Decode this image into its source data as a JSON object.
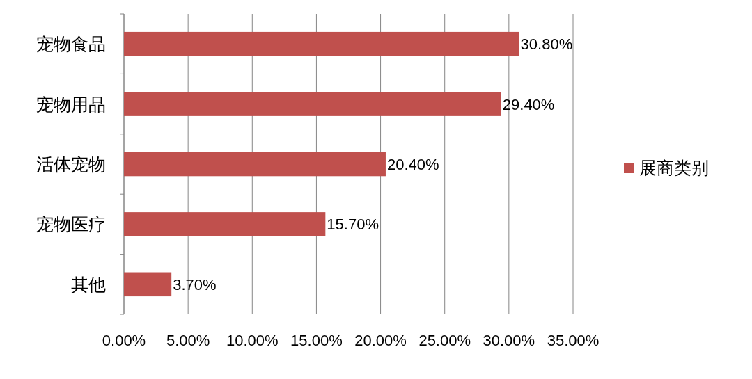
{
  "chart_data": {
    "type": "bar",
    "orientation": "horizontal",
    "categories": [
      "宠物食品",
      "宠物用品",
      "活体宠物",
      "宠物医疗",
      "其他"
    ],
    "series": [
      {
        "name": "展商类别",
        "color": "#c0504d",
        "values": [
          30.8,
          29.4,
          20.4,
          15.7,
          3.7
        ],
        "value_labels": [
          "30.80%",
          "29.40%",
          "20.40%",
          "15.70%",
          "3.70%"
        ]
      }
    ],
    "xlim": [
      0,
      35
    ],
    "xticks": [
      {
        "value": 0,
        "label": "0.00%"
      },
      {
        "value": 5,
        "label": "5.00%"
      },
      {
        "value": 10,
        "label": "10.00%"
      },
      {
        "value": 15,
        "label": "15.00%"
      },
      {
        "value": 20,
        "label": "20.00%"
      },
      {
        "value": 25,
        "label": "25.00%"
      },
      {
        "value": 30,
        "label": "30.00%"
      },
      {
        "value": 35,
        "label": "35.00%"
      }
    ],
    "grid": "x",
    "legend": "right"
  }
}
